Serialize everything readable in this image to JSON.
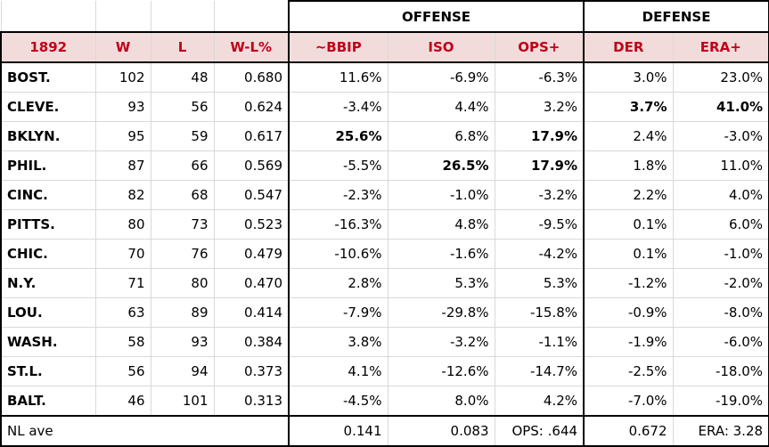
{
  "headers": {
    "group_offense": "OFFENSE",
    "group_defense": "DEFENSE",
    "columns": [
      "1892",
      "W",
      "L",
      "W-L%",
      "~BBIP",
      "ISO",
      "OPS+",
      "DER",
      "ERA+"
    ]
  },
  "rows": [
    {
      "team": "BOST.",
      "w": "102",
      "l": "48",
      "pct": "0.680",
      "bbip": "11.6%",
      "iso": "-6.9%",
      "ops": "-6.3%",
      "der": "3.0%",
      "era": "23.0%"
    },
    {
      "team": "CLEVE.",
      "w": "93",
      "l": "56",
      "pct": "0.624",
      "bbip": "-3.4%",
      "iso": "4.4%",
      "ops": "3.2%",
      "der": "3.7%",
      "era": "41.0%"
    },
    {
      "team": "BKLYN.",
      "w": "95",
      "l": "59",
      "pct": "0.617",
      "bbip": "25.6%",
      "iso": "6.8%",
      "ops": "17.9%",
      "der": "2.4%",
      "era": "-3.0%"
    },
    {
      "team": "PHIL.",
      "w": "87",
      "l": "66",
      "pct": "0.569",
      "bbip": "-5.5%",
      "iso": "26.5%",
      "ops": "17.9%",
      "der": "1.8%",
      "era": "11.0%"
    },
    {
      "team": "CINC.",
      "w": "82",
      "l": "68",
      "pct": "0.547",
      "bbip": "-2.3%",
      "iso": "-1.0%",
      "ops": "-3.2%",
      "der": "2.2%",
      "era": "4.0%"
    },
    {
      "team": "PITTS.",
      "w": "80",
      "l": "73",
      "pct": "0.523",
      "bbip": "-16.3%",
      "iso": "4.8%",
      "ops": "-9.5%",
      "der": "0.1%",
      "era": "6.0%"
    },
    {
      "team": "CHIC.",
      "w": "70",
      "l": "76",
      "pct": "0.479",
      "bbip": "-10.6%",
      "iso": "-1.6%",
      "ops": "-4.2%",
      "der": "0.1%",
      "era": "-1.0%"
    },
    {
      "team": "N.Y.",
      "w": "71",
      "l": "80",
      "pct": "0.470",
      "bbip": "2.8%",
      "iso": "5.3%",
      "ops": "5.3%",
      "der": "-1.2%",
      "era": "-2.0%"
    },
    {
      "team": "LOU.",
      "w": "63",
      "l": "89",
      "pct": "0.414",
      "bbip": "-7.9%",
      "iso": "-29.8%",
      "ops": "-15.8%",
      "der": "-0.9%",
      "era": "-8.0%"
    },
    {
      "team": "WASH.",
      "w": "58",
      "l": "93",
      "pct": "0.384",
      "bbip": "3.8%",
      "iso": "-3.2%",
      "ops": "-1.1%",
      "der": "-1.9%",
      "era": "-6.0%"
    },
    {
      "team": "ST.L.",
      "w": "56",
      "l": "94",
      "pct": "0.373",
      "bbip": "4.1%",
      "iso": "-12.6%",
      "ops": "-14.7%",
      "der": "-2.5%",
      "era": "-18.0%"
    },
    {
      "team": "BALT.",
      "w": "46",
      "l": "101",
      "pct": "0.313",
      "bbip": "-4.5%",
      "iso": "8.0%",
      "ops": "4.2%",
      "der": "-7.0%",
      "era": "-19.0%"
    }
  ],
  "average": {
    "label": "NL ave",
    "bbip": "0.141",
    "iso": "0.083",
    "ops": "OPS: .644",
    "der": "0.672",
    "era": "ERA: 3.28"
  },
  "colors": {
    "header_bg": "#f2dcdb",
    "header_text": "#c0001a"
  }
}
